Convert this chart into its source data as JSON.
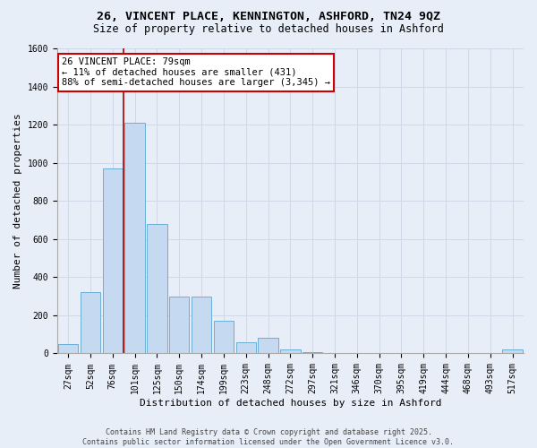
{
  "title_line1": "26, VINCENT PLACE, KENNINGTON, ASHFORD, TN24 9QZ",
  "title_line2": "Size of property relative to detached houses in Ashford",
  "xlabel": "Distribution of detached houses by size in Ashford",
  "ylabel": "Number of detached properties",
  "categories": [
    "27sqm",
    "52sqm",
    "76sqm",
    "101sqm",
    "125sqm",
    "150sqm",
    "174sqm",
    "199sqm",
    "223sqm",
    "248sqm",
    "272sqm",
    "297sqm",
    "321sqm",
    "346sqm",
    "370sqm",
    "395sqm",
    "419sqm",
    "444sqm",
    "468sqm",
    "493sqm",
    "517sqm"
  ],
  "values": [
    50,
    320,
    970,
    1210,
    680,
    300,
    300,
    170,
    60,
    80,
    20,
    5,
    2,
    2,
    0,
    2,
    0,
    0,
    0,
    0,
    20
  ],
  "bar_color": "#c5d9f0",
  "bar_edge_color": "#6baed6",
  "vline_x": 2.5,
  "vline_color": "#aa0000",
  "annotation_text": "26 VINCENT PLACE: 79sqm\n← 11% of detached houses are smaller (431)\n88% of semi-detached houses are larger (3,345) →",
  "annotation_box_color": "#cc0000",
  "ylim": [
    0,
    1600
  ],
  "yticks": [
    0,
    200,
    400,
    600,
    800,
    1000,
    1200,
    1400,
    1600
  ],
  "grid_color": "#d0d8e8",
  "bg_color": "#e8eef8",
  "footer_line1": "Contains HM Land Registry data © Crown copyright and database right 2025.",
  "footer_line2": "Contains public sector information licensed under the Open Government Licence v3.0.",
  "title_fontsize": 9.5,
  "subtitle_fontsize": 8.5,
  "axis_label_fontsize": 8,
  "tick_fontsize": 7,
  "annot_fontsize": 7.5,
  "footer_fontsize": 6
}
